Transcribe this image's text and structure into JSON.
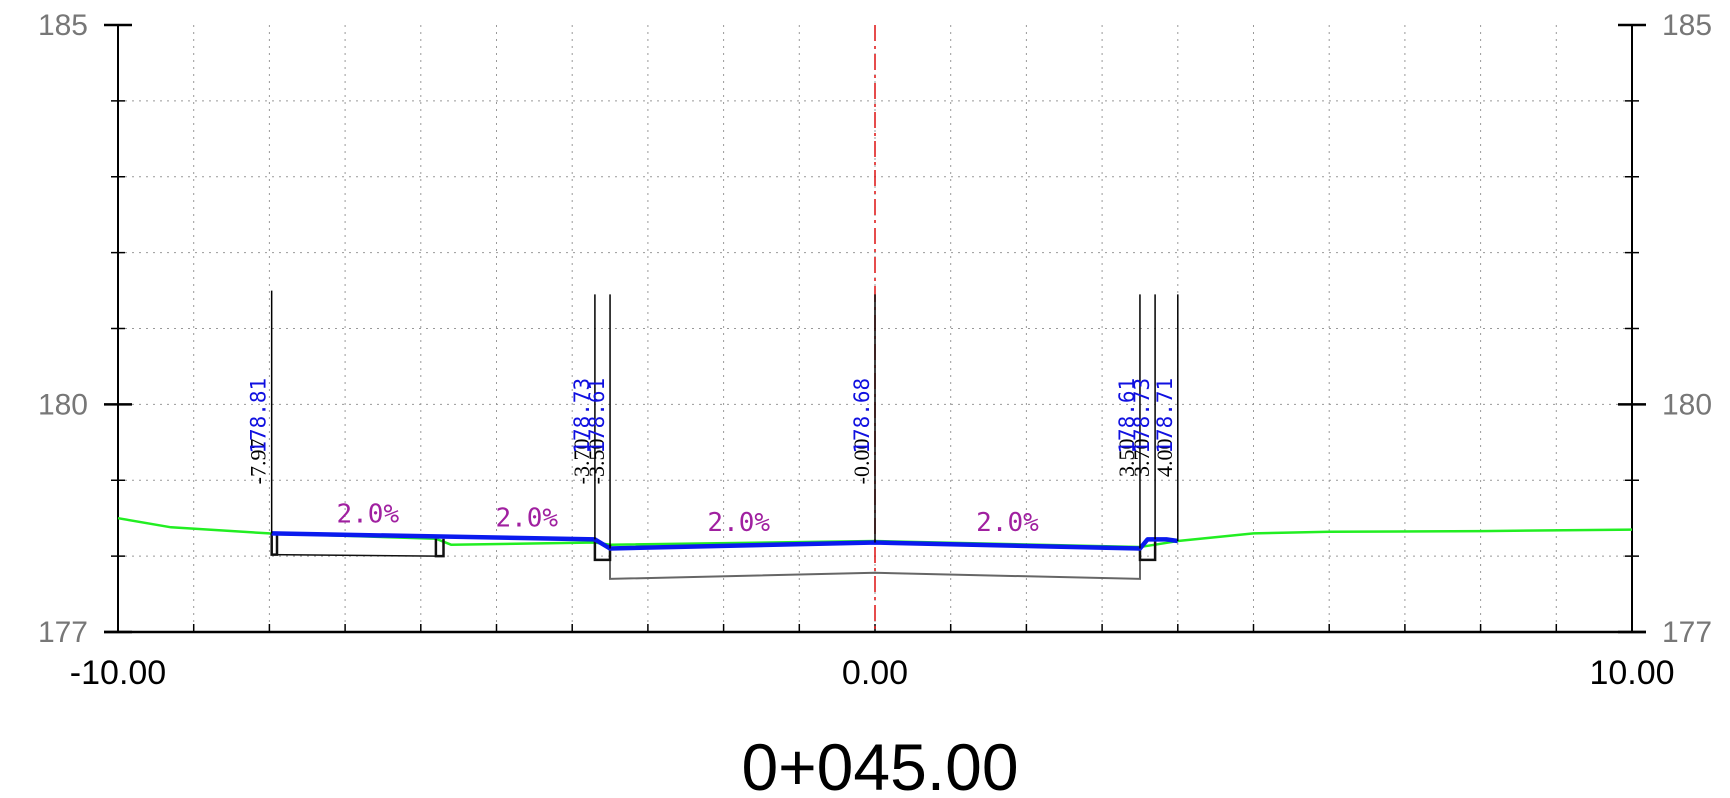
{
  "drawing": {
    "station_label": "0+045.00",
    "x_axis": {
      "min": -10,
      "max": 10,
      "tick_labels": [
        {
          "value": -10,
          "text": "-10.00"
        },
        {
          "value": 0,
          "text": "0.00"
        },
        {
          "value": 10,
          "text": "10.00"
        }
      ]
    },
    "y_axis": {
      "min": 177,
      "max": 185,
      "tick_labels": [
        {
          "value": 185,
          "text": "185"
        },
        {
          "value": 180,
          "text": "180"
        },
        {
          "value": 177,
          "text": "177"
        }
      ]
    },
    "grid": true,
    "centerline_offset": 0
  },
  "profiles": {
    "existing_ground": {
      "color": "#22ee22",
      "points": [
        [
          -10,
          178.5
        ],
        [
          -9.3,
          178.38
        ],
        [
          -8.0,
          178.3
        ],
        [
          -5.8,
          178.23
        ],
        [
          -5.6,
          178.15
        ],
        [
          -3.7,
          178.18
        ],
        [
          -3.5,
          178.15
        ],
        [
          0,
          178.2
        ],
        [
          3.5,
          178.12
        ],
        [
          3.7,
          178.15
        ],
        [
          4.0,
          178.2
        ],
        [
          5.0,
          178.3
        ],
        [
          6.0,
          178.32
        ],
        [
          8.0,
          178.33
        ],
        [
          10.0,
          178.35
        ]
      ]
    },
    "design_surface": {
      "color": "#0a1aee",
      "points": [
        [
          -7.97,
          178.3
        ],
        [
          -3.7,
          178.22
        ],
        [
          -3.5,
          178.1
        ],
        [
          0,
          178.18
        ],
        [
          3.5,
          178.1
        ],
        [
          3.6,
          178.22
        ],
        [
          3.85,
          178.22
        ],
        [
          4.0,
          178.2
        ]
      ]
    },
    "subgrade": {
      "color": "#666666",
      "points": [
        [
          -3.5,
          178.1
        ],
        [
          -3.5,
          177.7
        ],
        [
          0,
          177.78
        ],
        [
          3.5,
          177.7
        ],
        [
          3.5,
          178.1
        ]
      ]
    }
  },
  "structures": [
    {
      "type": "curb",
      "points": [
        [
          -7.97,
          178.3
        ],
        [
          -7.97,
          178.02
        ],
        [
          -7.9,
          178.02
        ],
        [
          -7.9,
          178.3
        ]
      ]
    },
    {
      "type": "curb",
      "points": [
        [
          -5.8,
          178.23
        ],
        [
          -5.8,
          178.0
        ],
        [
          -5.7,
          178.0
        ],
        [
          -5.7,
          178.23
        ]
      ]
    },
    {
      "type": "base",
      "points": [
        [
          -7.97,
          178.02
        ],
        [
          -5.8,
          178.0
        ]
      ]
    },
    {
      "type": "curb",
      "points": [
        [
          -3.7,
          178.22
        ],
        [
          -3.7,
          177.95
        ],
        [
          -3.5,
          177.95
        ],
        [
          -3.5,
          178.15
        ]
      ]
    },
    {
      "type": "curb",
      "points": [
        [
          3.5,
          178.1
        ],
        [
          3.5,
          177.95
        ],
        [
          3.7,
          177.95
        ],
        [
          3.7,
          178.22
        ]
      ]
    }
  ],
  "annotations": [
    {
      "offset": -7.97,
      "offset_text": "-7.97",
      "elev_text": "178.81",
      "line_top": 181.5
    },
    {
      "offset": -3.7,
      "offset_text": "-3.70",
      "elev_text": "178.73",
      "line_top": 181.45
    },
    {
      "offset": -3.5,
      "offset_text": "-3.50",
      "elev_text": "178.61",
      "line_top": 181.45
    },
    {
      "offset": 0.0,
      "offset_text": "-0.00",
      "elev_text": "178.68",
      "line_top": 181.45
    },
    {
      "offset": 3.5,
      "offset_text": "3.50",
      "elev_text": "178.61",
      "line_top": 181.45
    },
    {
      "offset": 3.7,
      "offset_text": "3.70",
      "elev_text": "178.73",
      "line_top": 181.45
    },
    {
      "offset": 4.0,
      "offset_text": "4.00",
      "elev_text": "178.71",
      "line_top": 181.45
    }
  ],
  "slopes": [
    {
      "text": "2.0%",
      "x": -6.7,
      "y": 178.44
    },
    {
      "text": "2.0%",
      "x": -4.6,
      "y": 178.39
    },
    {
      "text": "2.0%",
      "x": -1.8,
      "y": 178.33
    },
    {
      "text": "2.0%",
      "x": 1.75,
      "y": 178.33
    }
  ]
}
